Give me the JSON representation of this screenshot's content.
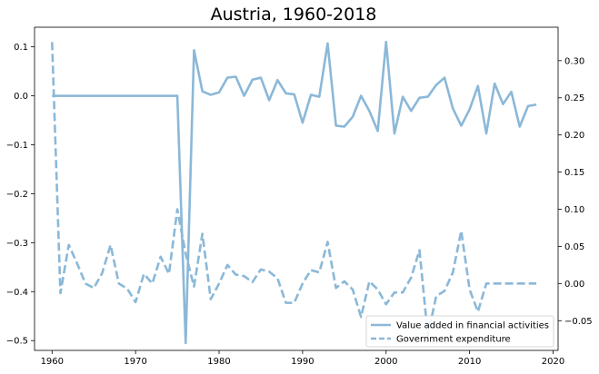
{
  "chart_data": {
    "type": "line",
    "title": "Austria, 1960-2018",
    "xlabel": "",
    "ylabel_left": "",
    "ylabel_right": "",
    "xlim": [
      1960,
      2018
    ],
    "ylim_left": [
      -0.52,
      0.14
    ],
    "ylim_right": [
      -0.09,
      0.345
    ],
    "x_ticks": [
      1960,
      1970,
      1980,
      1990,
      2000,
      2010,
      2020
    ],
    "y_left_ticks": [
      0.1,
      0.0,
      -0.1,
      -0.2,
      -0.3,
      -0.4,
      -0.5
    ],
    "y_left_tick_labels": [
      "0.1",
      "0.0",
      "−0.1",
      "−0.2",
      "−0.3",
      "−0.4",
      "−0.5"
    ],
    "y_right_ticks": [
      0.3,
      0.25,
      0.2,
      0.15,
      0.1,
      0.05,
      0.0,
      -0.05
    ],
    "y_right_tick_labels": [
      "0.30",
      "0.25",
      "0.20",
      "0.15",
      "0.10",
      "0.05",
      "0.00",
      "−0.05"
    ],
    "grid": false,
    "legend_position": "bottom-right",
    "color": "#8bb8d8",
    "series": [
      {
        "name": "Value added in financial activities",
        "axis": "left",
        "style": "solid",
        "x": [
          1960,
          1961,
          1962,
          1963,
          1964,
          1965,
          1966,
          1967,
          1968,
          1969,
          1970,
          1971,
          1972,
          1973,
          1974,
          1975,
          1976,
          1977,
          1978,
          1979,
          1980,
          1981,
          1982,
          1983,
          1984,
          1985,
          1986,
          1987,
          1988,
          1989,
          1990,
          1991,
          1992,
          1993,
          1994,
          1995,
          1996,
          1997,
          1998,
          1999,
          2000,
          2001,
          2002,
          2003,
          2004,
          2005,
          2006,
          2007,
          2008,
          2009,
          2010,
          2011,
          2012,
          2013,
          2014,
          2015,
          2016,
          2017,
          2018
        ],
        "y": [
          0,
          0,
          0,
          0,
          0,
          0,
          0,
          0,
          0,
          0,
          0,
          0,
          0,
          0,
          0,
          0,
          -0.505,
          0.093,
          0.009,
          0.002,
          0.007,
          0.037,
          0.039,
          0.0,
          0.033,
          0.037,
          -0.009,
          0.032,
          0.005,
          0.003,
          -0.055,
          0.002,
          -0.002,
          0.107,
          -0.061,
          -0.063,
          -0.043,
          0.0,
          -0.031,
          -0.072,
          0.11,
          -0.077,
          -0.002,
          -0.031,
          -0.004,
          -0.002,
          0.022,
          0.037,
          -0.026,
          -0.061,
          -0.028,
          0.02,
          -0.077,
          0.025,
          -0.017,
          0.008,
          -0.063,
          -0.021,
          -0.018
        ]
      },
      {
        "name": "Government expenditure",
        "axis": "right",
        "style": "dashed",
        "x": [
          1960,
          1961,
          1962,
          1963,
          1964,
          1965,
          1966,
          1967,
          1968,
          1969,
          1970,
          1971,
          1972,
          1973,
          1974,
          1975,
          1976,
          1977,
          1978,
          1979,
          1980,
          1981,
          1982,
          1983,
          1984,
          1985,
          1986,
          1987,
          1988,
          1989,
          1990,
          1991,
          1992,
          1993,
          1994,
          1995,
          1996,
          1997,
          1998,
          1999,
          2000,
          2001,
          2002,
          2003,
          2004,
          2005,
          2006,
          2007,
          2008,
          2009,
          2010,
          2011,
          2012,
          2013,
          2014,
          2015,
          2016,
          2017,
          2018
        ],
        "y": [
          0.325,
          -0.013,
          0.052,
          0.027,
          0.0,
          -0.006,
          0.014,
          0.052,
          0.0,
          -0.007,
          -0.025,
          0.013,
          0.0,
          0.036,
          0.013,
          0.1,
          0.04,
          -0.004,
          0.067,
          -0.021,
          0.0,
          0.025,
          0.012,
          0.01,
          0.002,
          0.019,
          0.016,
          0.007,
          -0.026,
          -0.026,
          0.0,
          0.018,
          0.015,
          0.056,
          -0.006,
          0.003,
          -0.008,
          -0.045,
          0.003,
          -0.008,
          -0.028,
          -0.012,
          -0.012,
          0.008,
          0.045,
          -0.07,
          -0.017,
          -0.01,
          0.015,
          0.071,
          -0.008,
          -0.038,
          0.0,
          0.0,
          0.0,
          0.0,
          0.0,
          0.0,
          0.0
        ]
      }
    ]
  }
}
